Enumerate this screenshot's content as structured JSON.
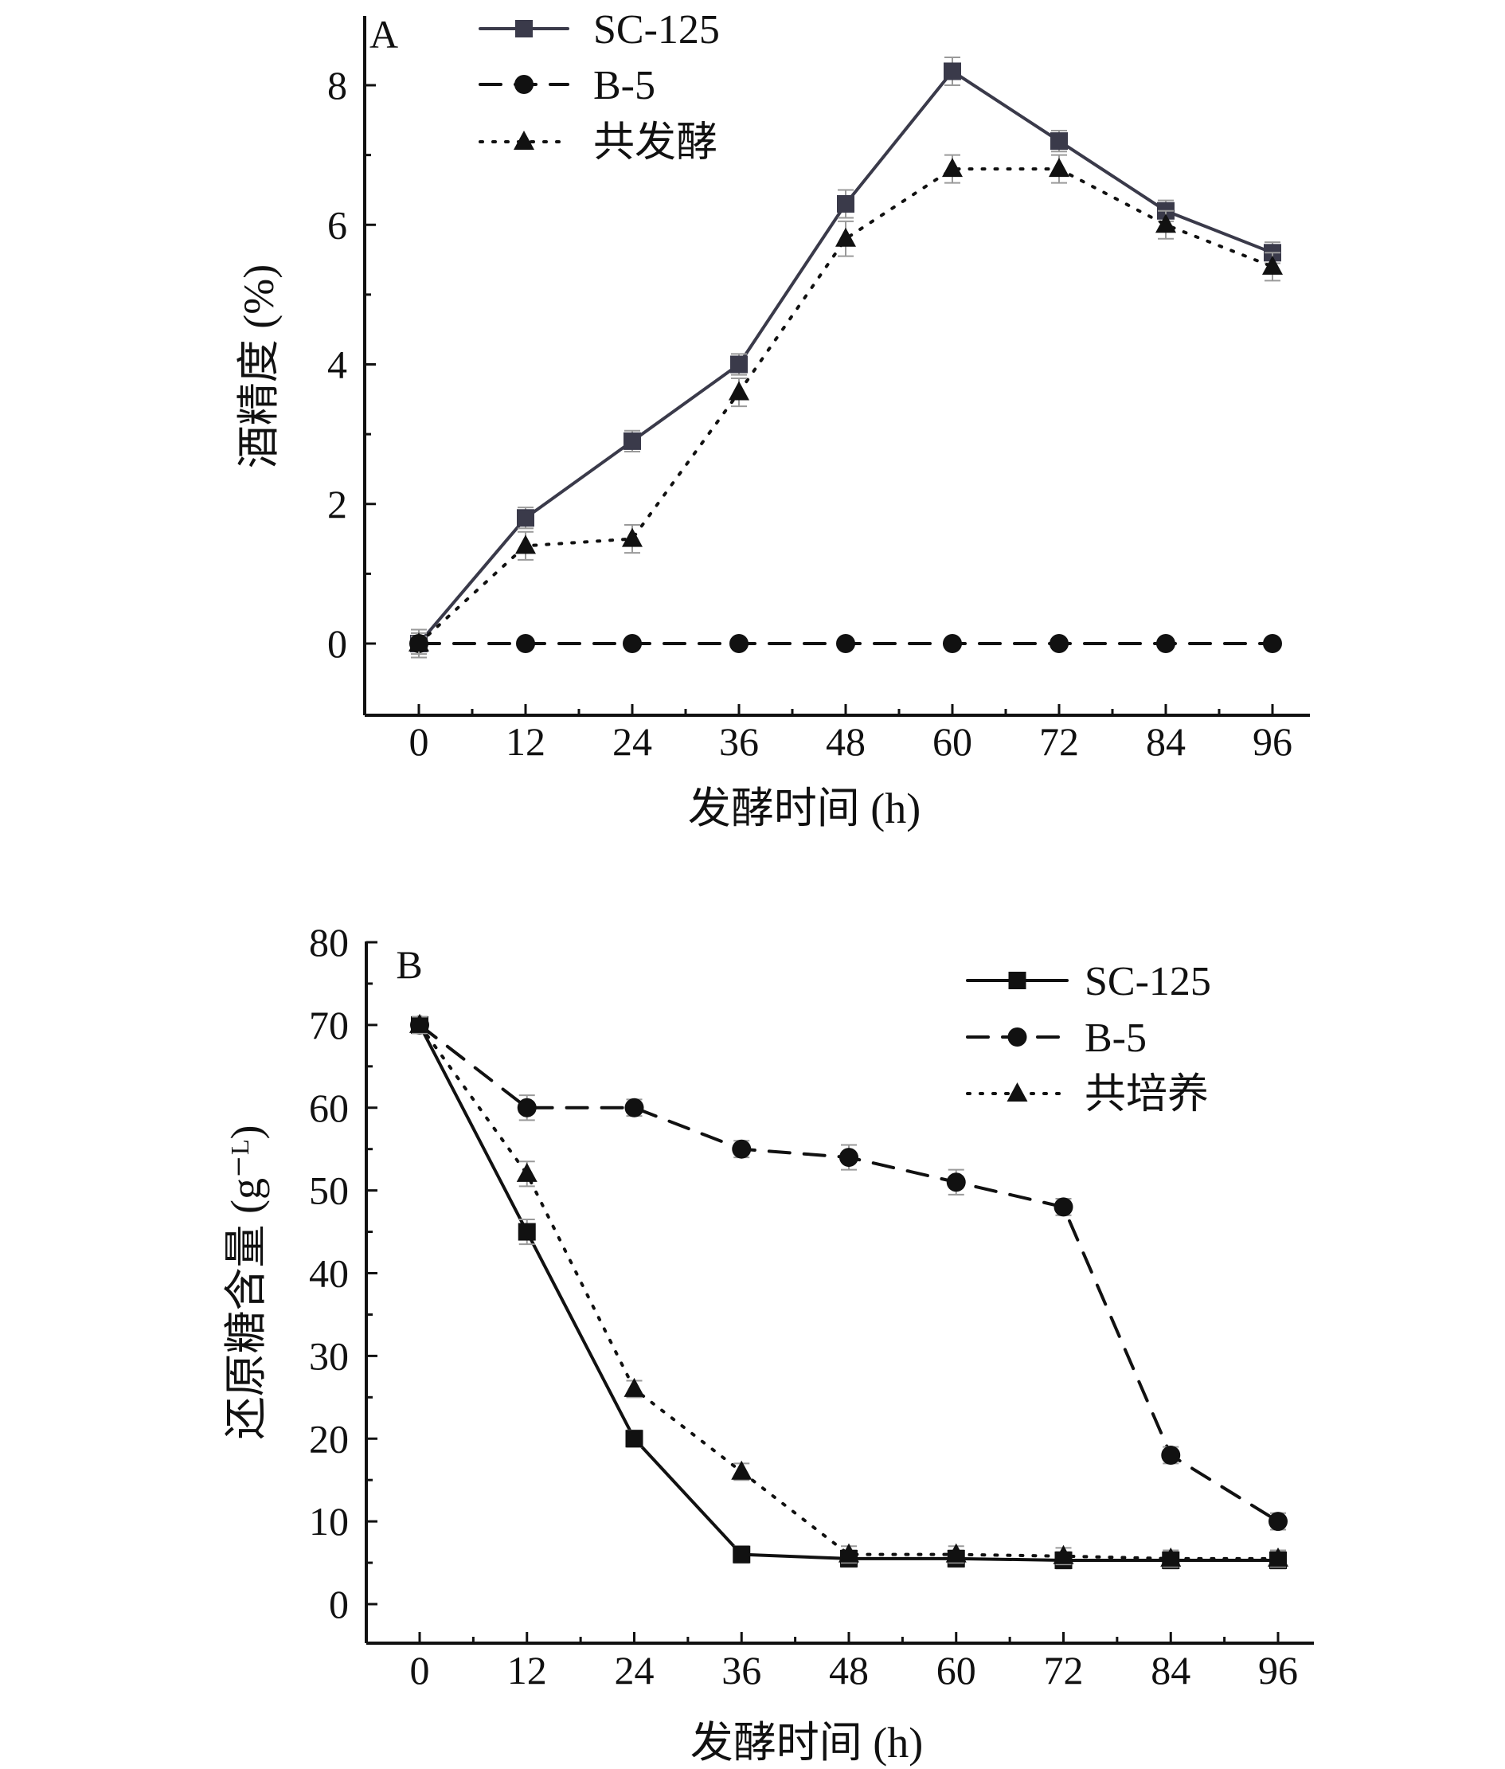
{
  "chart_data": [
    {
      "type": "line",
      "panel_label": "A",
      "xlabel": "发酵时间 (h)",
      "ylabel": "酒精度 (%)",
      "x": [
        0,
        12,
        24,
        36,
        48,
        60,
        72,
        84,
        96
      ],
      "xticks": [
        "0",
        "12",
        "24",
        "36",
        "48",
        "60",
        "72",
        "84",
        "96"
      ],
      "yticks": [
        "0",
        "2",
        "4",
        "6",
        "8"
      ],
      "xlim": [
        -6,
        100
      ],
      "ylim": [
        -1,
        9
      ],
      "grid": false,
      "legend_position": "top-left",
      "series": [
        {
          "name": "SC-125",
          "marker": "square",
          "line": "solid",
          "color": "#3a3a4a",
          "values": [
            0,
            1.8,
            2.9,
            4.0,
            6.3,
            8.2,
            7.2,
            6.2,
            5.6
          ],
          "error": [
            0.2,
            0.15,
            0.15,
            0.15,
            0.2,
            0.2,
            0.15,
            0.15,
            0.15
          ]
        },
        {
          "name": "B-5",
          "marker": "circle",
          "line": "dashed",
          "color": "#111111",
          "values": [
            0,
            0,
            0,
            0,
            0,
            0,
            0,
            0,
            0
          ],
          "error": [
            0.1,
            0.05,
            0.05,
            0.05,
            0.05,
            0.05,
            0.05,
            0.05,
            0.05
          ]
        },
        {
          "name": "共发酵",
          "marker": "triangle",
          "line": "dotted",
          "color": "#111111",
          "values": [
            0,
            1.4,
            1.5,
            3.6,
            5.8,
            6.8,
            6.8,
            6.0,
            5.4
          ],
          "error": [
            0.15,
            0.2,
            0.2,
            0.2,
            0.25,
            0.2,
            0.2,
            0.2,
            0.2
          ]
        }
      ]
    },
    {
      "type": "line",
      "panel_label": "B",
      "xlabel": "发酵时间 (h)",
      "ylabel": "还原糖含量 (g⁻ᴸ)",
      "x": [
        0,
        12,
        24,
        36,
        48,
        60,
        72,
        84,
        96
      ],
      "xticks": [
        "0",
        "12",
        "24",
        "36",
        "48",
        "60",
        "72",
        "84",
        "96"
      ],
      "yticks": [
        "0",
        "10",
        "20",
        "30",
        "40",
        "50",
        "60",
        "70",
        "80"
      ],
      "xlim": [
        -6,
        100
      ],
      "ylim": [
        -5,
        80
      ],
      "grid": false,
      "legend_position": "top-right",
      "series": [
        {
          "name": "SC-125",
          "marker": "square",
          "line": "solid",
          "color": "#111111",
          "values": [
            70,
            45,
            20,
            6,
            5.5,
            5.5,
            5.3,
            5.3,
            5.3
          ],
          "error": [
            1,
            1.5,
            1,
            1,
            1,
            1,
            1,
            1,
            1
          ]
        },
        {
          "name": "B-5",
          "marker": "circle",
          "line": "dashed",
          "color": "#111111",
          "values": [
            70,
            60,
            60,
            55,
            54,
            51,
            48,
            18,
            10
          ],
          "error": [
            1,
            1.5,
            1,
            1,
            1.5,
            1.5,
            1,
            1,
            1
          ]
        },
        {
          "name": "共培养",
          "marker": "triangle",
          "line": "dotted",
          "color": "#111111",
          "values": [
            70,
            52,
            26,
            16,
            6,
            6,
            5.8,
            5.5,
            5.5
          ],
          "error": [
            1,
            1.5,
            1,
            1,
            1,
            1,
            1,
            1,
            1
          ]
        }
      ]
    }
  ]
}
